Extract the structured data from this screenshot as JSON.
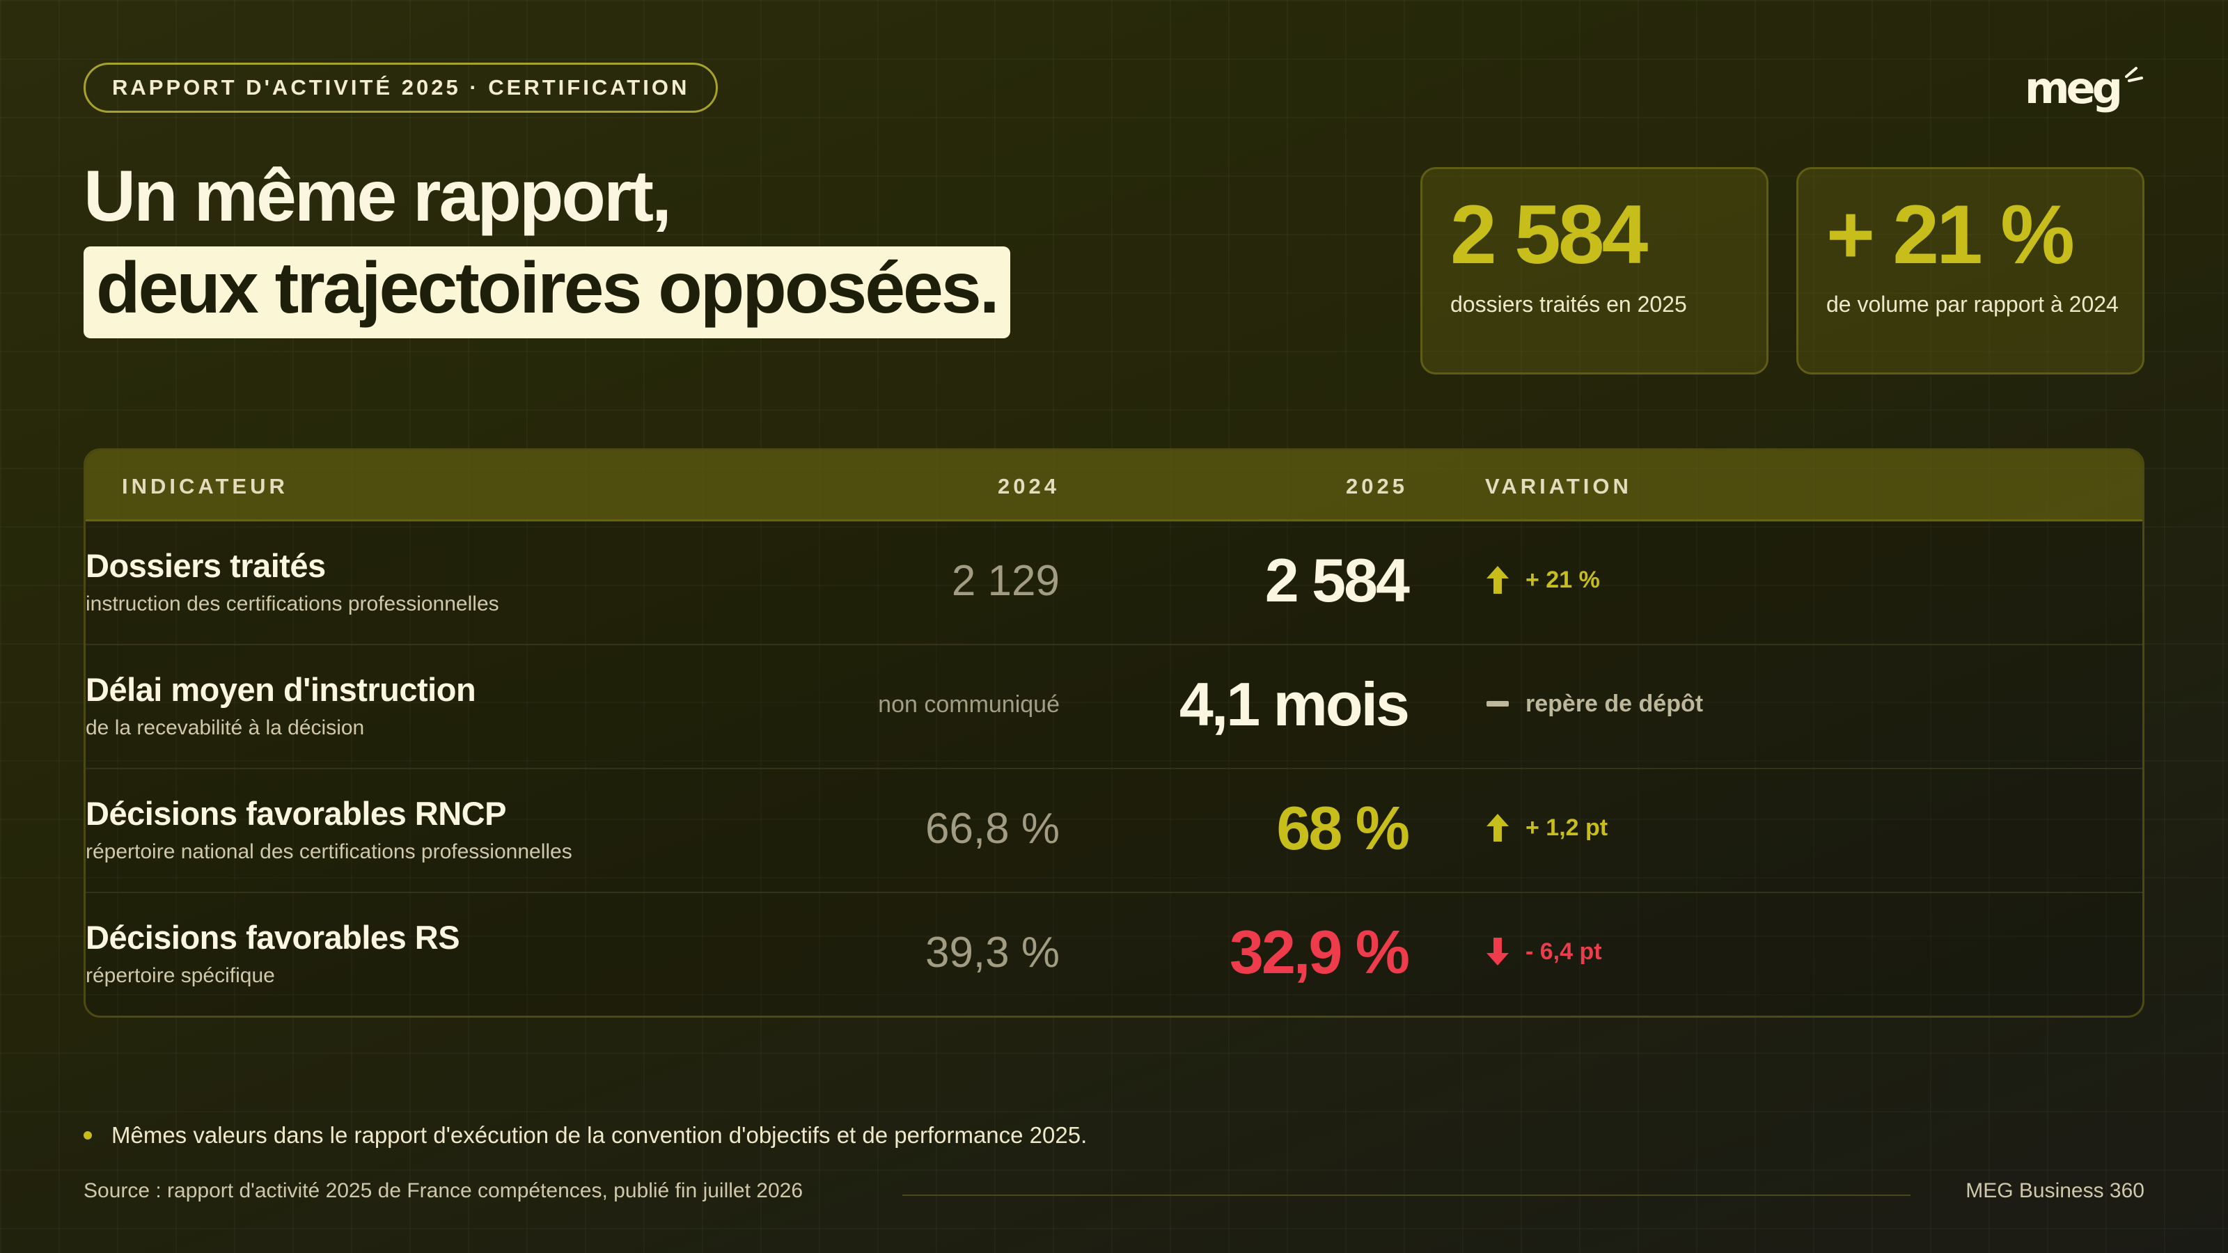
{
  "header": {
    "tag": "RAPPORT D'ACTIVITÉ 2025 · CERTIFICATION",
    "logo": "meg"
  },
  "title": {
    "line1": "Un même rapport,",
    "line2": "deux trajectoires opposées."
  },
  "kpis": [
    {
      "value": "2 584",
      "label": "dossiers traités en 2025"
    },
    {
      "value": "+ 21 %",
      "label": "de volume par rapport à 2024"
    }
  ],
  "table": {
    "headers": {
      "indicator": "INDICATEUR",
      "y2024": "2024",
      "y2025": "2025",
      "variation": "VARIATION"
    },
    "rows": [
      {
        "name": "Dossiers traités",
        "sub": "instruction des certifications professionnelles",
        "v2024": "2 129",
        "v2025": "2 584",
        "v2025_color": "#fbf6e0",
        "variation": "+ 21 %",
        "trend": "up",
        "var_color": "#c7bd1b"
      },
      {
        "name": "Délai moyen d'instruction",
        "sub": "de la recevabilité à la décision",
        "v2024": "non communiqué",
        "v2025": "4,1 mois",
        "v2025_color": "#fbf6e0",
        "variation": "repère de dépôt",
        "trend": "flat",
        "var_color": "#bdb79c"
      },
      {
        "name": "Décisions favorables RNCP",
        "sub": "répertoire national des certifications professionnelles",
        "v2024": "66,8 %",
        "v2025": "68 %",
        "v2025_color": "#c7bd1b",
        "variation": "+ 1,2 pt",
        "trend": "up",
        "var_color": "#c7bd1b"
      },
      {
        "name": "Décisions favorables RS",
        "sub": "répertoire spécifique",
        "v2024": "39,3 %",
        "v2025": "32,9 %",
        "v2025_color": "#ee3c4c",
        "variation": "- 6,4 pt",
        "trend": "down",
        "var_color": "#ee3c4c"
      }
    ]
  },
  "note": "Mêmes valeurs dans le rapport d'exécution de la convention d'objectifs et de performance 2025.",
  "footer": {
    "source": "Source : rapport d'activité 2025 de France compétences, publié fin juillet 2026",
    "brand": "MEG Business 360"
  },
  "icons": {
    "up": "arrow-up-icon",
    "down": "arrow-down-icon",
    "flat": "dash-icon"
  },
  "colors": {
    "accent": "#c7bd1b",
    "negative": "#ee3c4c",
    "background": "#24250a"
  }
}
